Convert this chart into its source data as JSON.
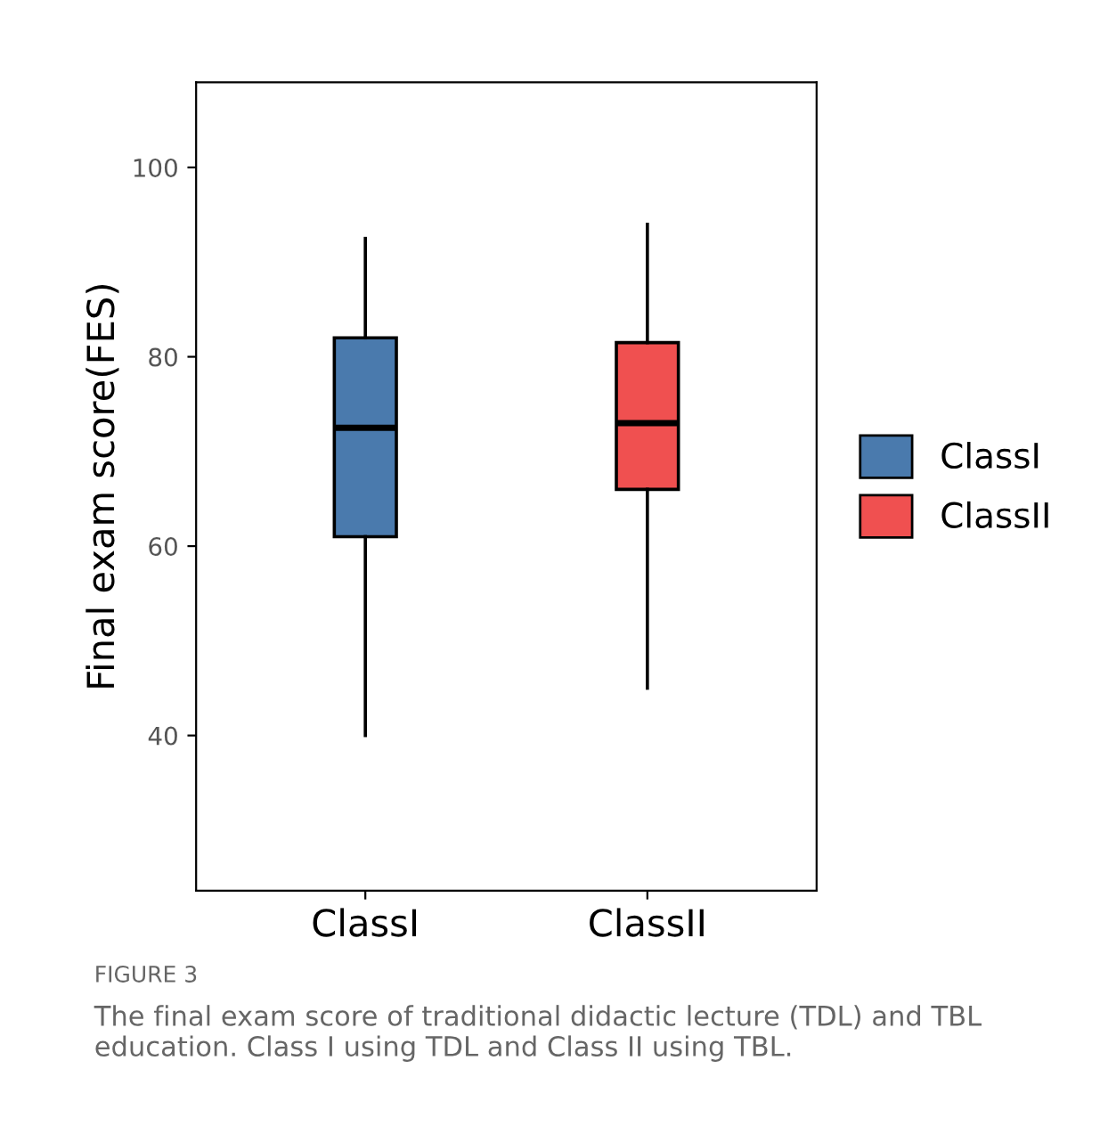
{
  "chart_data": {
    "type": "box",
    "ylabel": "Final exam score(FES)",
    "categories": [
      "ClassI",
      "ClassII"
    ],
    "series": [
      {
        "name": "ClassI",
        "color": "#4a7aad",
        "boxes": [
          {
            "low": 40,
            "q1": 61,
            "median": 72.5,
            "q3": 82,
            "high": 92.5
          },
          null
        ]
      },
      {
        "name": "ClassII",
        "color": "#f05050",
        "boxes": [
          null,
          {
            "low": 45,
            "q1": 66,
            "median": 73,
            "q3": 81.5,
            "high": 94
          }
        ]
      }
    ],
    "ylim": [
      23.6,
      109
    ],
    "yticks": [
      40,
      60,
      80,
      100
    ],
    "grid": false,
    "legend": "right",
    "annotations": [
      "FIGURE 3",
      "The final exam score of traditional didactic lecture (TDL) and TBL education. Class I using TDL and Class II using TBL."
    ]
  }
}
